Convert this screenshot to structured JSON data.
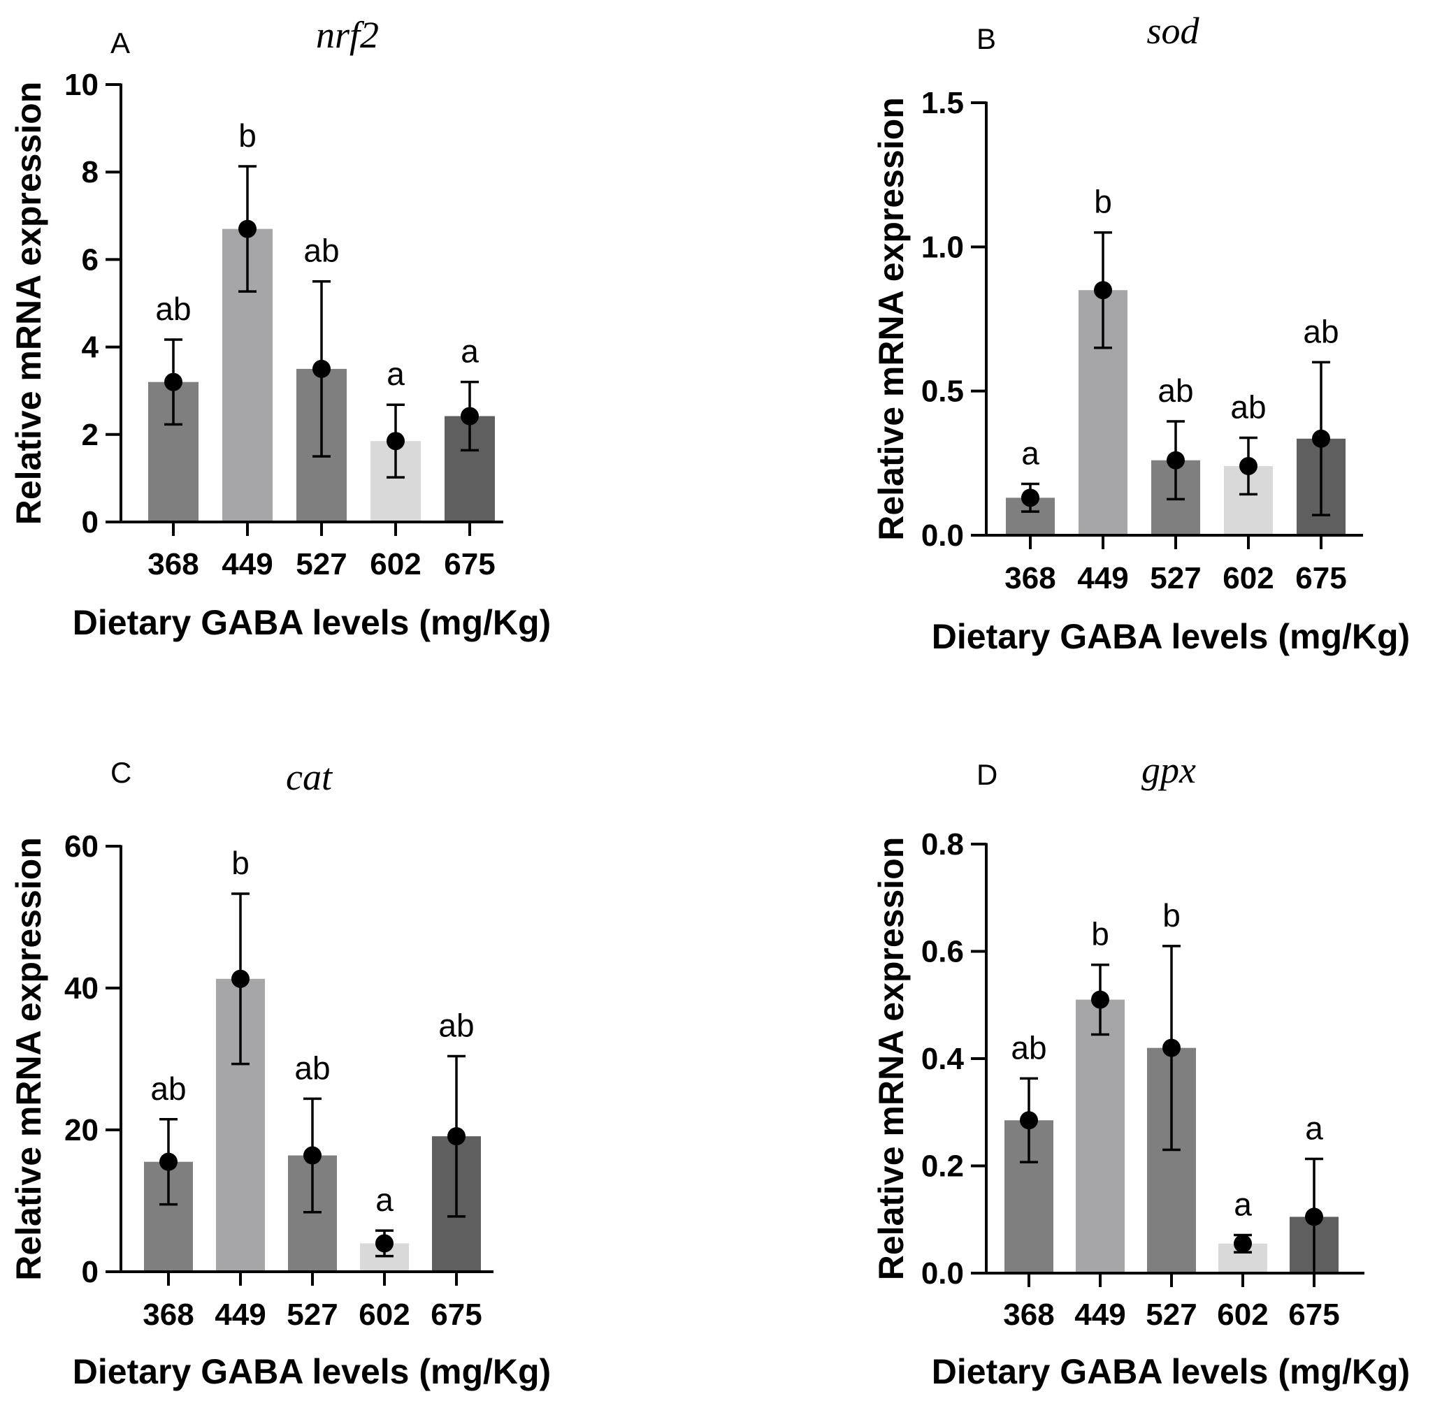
{
  "figure": {
    "bar_colors": [
      "#7f7f7f",
      "#a6a6a8",
      "#7f7f7f",
      "#d9d9d9",
      "#5f5f5f"
    ],
    "panels_order": [
      "A",
      "B",
      "C",
      "D"
    ]
  },
  "chart_data": [
    {
      "type": "bar",
      "panel_label": "A",
      "title": "nrf2",
      "xlabel": "Dietary GABA levels (mg/Kg)",
      "ylabel": "Relative mRNA expression",
      "categories": [
        "368",
        "449",
        "527",
        "602",
        "675"
      ],
      "values": [
        3.2,
        6.7,
        3.5,
        1.85,
        2.42
      ],
      "error": [
        0.97,
        1.43,
        2.0,
        0.83,
        0.78
      ],
      "significance": [
        "ab",
        "b",
        "ab",
        "a",
        "a"
      ],
      "ylim": [
        0,
        10
      ],
      "yticks": [
        0,
        2,
        4,
        6,
        8,
        10
      ],
      "ytick_labels": [
        "0",
        "2",
        "4",
        "6",
        "8",
        "10"
      ]
    },
    {
      "type": "bar",
      "panel_label": "B",
      "title": "sod",
      "xlabel": "Dietary GABA levels (mg/Kg)",
      "ylabel": "Relative mRNA expression",
      "categories": [
        "368",
        "449",
        "527",
        "602",
        "675"
      ],
      "values": [
        0.13,
        0.85,
        0.26,
        0.24,
        0.335
      ],
      "error": [
        0.048,
        0.2,
        0.135,
        0.098,
        0.265
      ],
      "significance": [
        "a",
        "b",
        "ab",
        "ab",
        "ab"
      ],
      "ylim": [
        0,
        1.5
      ],
      "yticks": [
        0,
        0.5,
        1.0,
        1.5
      ],
      "ytick_labels": [
        "0.0",
        "0.5",
        "1.0",
        "1.5"
      ]
    },
    {
      "type": "bar",
      "panel_label": "C",
      "title": "cat",
      "xlabel": "Dietary GABA levels (mg/Kg)",
      "ylabel": "Relative mRNA expression",
      "categories": [
        "368",
        "449",
        "527",
        "602",
        "675"
      ],
      "values": [
        15.5,
        41.3,
        16.4,
        4.0,
        19.1
      ],
      "error": [
        6.0,
        12.0,
        8.0,
        1.8,
        11.3
      ],
      "significance": [
        "ab",
        "b",
        "ab",
        "a",
        "ab"
      ],
      "ylim": [
        0,
        60
      ],
      "yticks": [
        0,
        20,
        40,
        60
      ],
      "ytick_labels": [
        "0",
        "20",
        "40",
        "60"
      ]
    },
    {
      "type": "bar",
      "panel_label": "D",
      "title": "gpx",
      "xlabel": "Dietary GABA levels (mg/Kg)",
      "ylabel": "Relative mRNA expression",
      "categories": [
        "368",
        "449",
        "527",
        "602",
        "675"
      ],
      "values": [
        0.285,
        0.51,
        0.42,
        0.055,
        0.105
      ],
      "error": [
        0.078,
        0.065,
        0.19,
        0.016,
        0.108
      ],
      "significance": [
        "ab",
        "b",
        "b",
        "a",
        "a"
      ],
      "ylim": [
        0,
        0.8
      ],
      "yticks": [
        0,
        0.2,
        0.4,
        0.6,
        0.8
      ],
      "ytick_labels": [
        "0.0",
        "0.2",
        "0.4",
        "0.6",
        "0.8"
      ]
    }
  ]
}
